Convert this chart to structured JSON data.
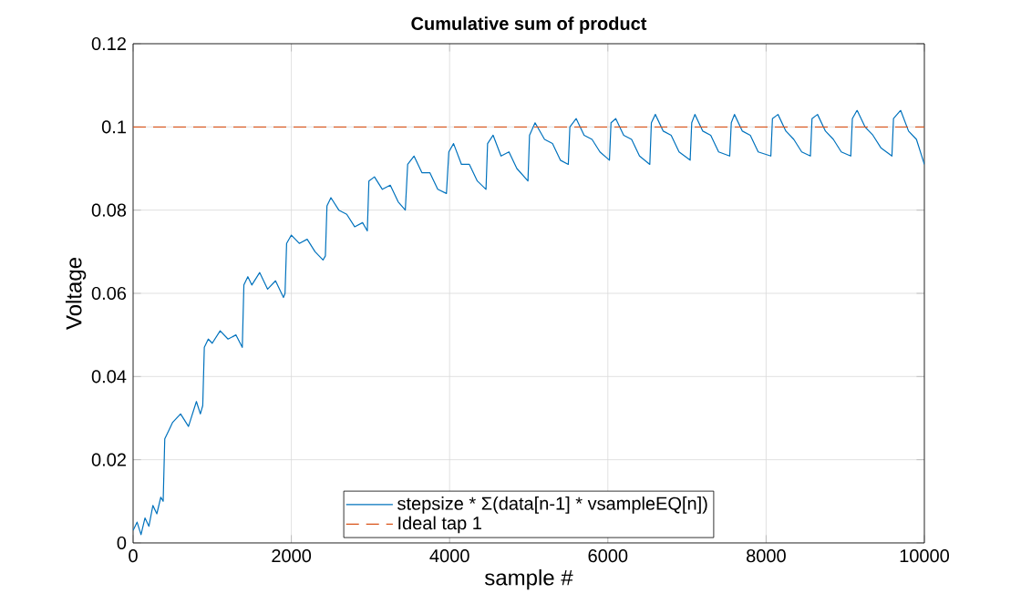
{
  "chart_data": {
    "type": "line",
    "title": "Cumulative sum of product",
    "xlabel": "sample #",
    "ylabel": "Voltage",
    "xlim": [
      0,
      10000
    ],
    "ylim": [
      0,
      0.12
    ],
    "xticks": [
      0,
      2000,
      4000,
      6000,
      8000,
      10000
    ],
    "yticks": [
      0,
      0.02,
      0.04,
      0.06,
      0.08,
      0.1,
      0.12
    ],
    "grid": true,
    "legend": "bottom",
    "line_style": "solid",
    "marker": "none",
    "series": [
      {
        "name": "stepsize * Σ(data[n-1] * vsampleEQ[n])",
        "color": "#0072bd",
        "x": [
          0,
          50,
          100,
          150,
          200,
          250,
          300,
          350,
          380,
          400,
          450,
          500,
          600,
          700,
          800,
          850,
          880,
          900,
          950,
          1000,
          1100,
          1200,
          1300,
          1380,
          1400,
          1450,
          1500,
          1600,
          1700,
          1800,
          1900,
          1920,
          1940,
          2000,
          2100,
          2200,
          2300,
          2400,
          2430,
          2450,
          2500,
          2600,
          2700,
          2800,
          2900,
          2960,
          2980,
          3050,
          3150,
          3250,
          3350,
          3440,
          3470,
          3550,
          3650,
          3750,
          3850,
          3960,
          3990,
          4050,
          4150,
          4250,
          4350,
          4460,
          4480,
          4550,
          4650,
          4750,
          4850,
          4990,
          5010,
          5080,
          5200,
          5300,
          5400,
          5500,
          5520,
          5600,
          5700,
          5800,
          5900,
          6020,
          6040,
          6100,
          6200,
          6300,
          6400,
          6530,
          6550,
          6600,
          6700,
          6800,
          6900,
          7040,
          7060,
          7100,
          7200,
          7300,
          7400,
          7540,
          7560,
          7600,
          7700,
          7800,
          7900,
          8060,
          8080,
          8150,
          8250,
          8350,
          8450,
          8560,
          8580,
          8650,
          8750,
          8850,
          8950,
          9070,
          9090,
          9150,
          9250,
          9350,
          9450,
          9590,
          9610,
          9700,
          9800,
          9900,
          10000
        ],
        "values": [
          0.003,
          0.005,
          0.002,
          0.006,
          0.004,
          0.009,
          0.007,
          0.011,
          0.01,
          0.025,
          0.027,
          0.029,
          0.031,
          0.028,
          0.034,
          0.031,
          0.033,
          0.047,
          0.049,
          0.048,
          0.051,
          0.049,
          0.05,
          0.047,
          0.062,
          0.064,
          0.062,
          0.065,
          0.061,
          0.063,
          0.059,
          0.06,
          0.072,
          0.074,
          0.072,
          0.073,
          0.07,
          0.068,
          0.069,
          0.081,
          0.083,
          0.08,
          0.079,
          0.076,
          0.077,
          0.075,
          0.087,
          0.088,
          0.085,
          0.086,
          0.082,
          0.08,
          0.091,
          0.093,
          0.089,
          0.089,
          0.085,
          0.084,
          0.094,
          0.096,
          0.091,
          0.091,
          0.087,
          0.085,
          0.096,
          0.098,
          0.093,
          0.094,
          0.09,
          0.087,
          0.098,
          0.101,
          0.097,
          0.096,
          0.092,
          0.091,
          0.1,
          0.102,
          0.098,
          0.097,
          0.094,
          0.092,
          0.101,
          0.102,
          0.098,
          0.097,
          0.093,
          0.091,
          0.101,
          0.103,
          0.099,
          0.098,
          0.094,
          0.092,
          0.101,
          0.103,
          0.099,
          0.098,
          0.094,
          0.093,
          0.101,
          0.103,
          0.099,
          0.098,
          0.094,
          0.093,
          0.102,
          0.103,
          0.099,
          0.097,
          0.094,
          0.093,
          0.102,
          0.103,
          0.099,
          0.097,
          0.094,
          0.093,
          0.102,
          0.104,
          0.1,
          0.098,
          0.095,
          0.093,
          0.102,
          0.104,
          0.099,
          0.097,
          0.091
        ]
      },
      {
        "name": "Ideal tap 1",
        "color": "#d95319",
        "line_style": "dashed",
        "x": [
          0,
          10000
        ],
        "values": [
          0.1,
          0.1
        ]
      }
    ]
  }
}
